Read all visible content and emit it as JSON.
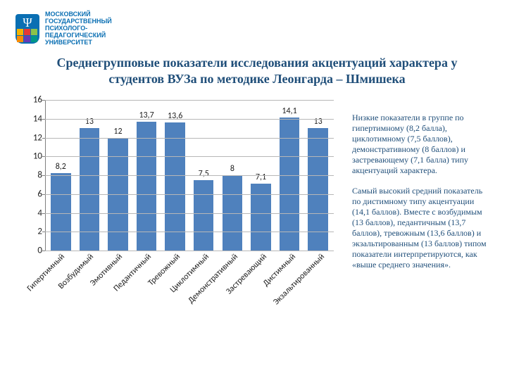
{
  "logo": {
    "text": "МОСКОВСКИЙ\nГОСУДАРСТВЕННЫЙ\nПСИХОЛОГО-\nПЕДАГОГИЧЕСКИЙ\nУНИВЕРСИТЕТ"
  },
  "title": "Среднегрупповые показатели исследования акцентуаций характера у студентов ВУЗа по методике Леонгарда – Шмишека",
  "chart": {
    "type": "bar",
    "ylim": [
      0,
      16
    ],
    "ytick_step": 2,
    "bar_color": "#4f81bd",
    "background_color": "#ffffff",
    "grid_color": "#b7b7b7",
    "axis_color": "#808080",
    "bar_width_ratio": 0.7,
    "label_fontsize": 12,
    "tick_fontsize": 13,
    "title_color": "#1f4e79",
    "categories": [
      "Гипертимный",
      "Возбудимый",
      "Эмотивный",
      "Педантичный",
      "Тревожный",
      "Циклотимный",
      "Демонстративный",
      "Застревающий",
      "Дистимный",
      "Экзальтированный"
    ],
    "values": [
      8.2,
      13,
      12,
      13.7,
      13.6,
      7.5,
      8,
      7.1,
      14.1,
      13
    ],
    "value_labels": [
      "8,2",
      "13",
      "12",
      "13,7",
      "13,6",
      "7,5",
      "8",
      "7,1",
      "14,1",
      "13"
    ]
  },
  "side": {
    "p1": "Низкие показатели в группе по гипертимному (8,2 балла), циклотимному (7,5 баллов), демонстративному (8 баллов) и застревающему (7,1 балла) типу акцентуаций характера.",
    "p2": "Самый высокий средний показатель по дистимному типу акцентуации (14,1 баллов). Вместе с возбудимым (13 баллов), педантичным (13,7 баллов), тревожным (13,6 баллов) и экзальтированным (13 баллов) типом показатели интерпретируются, как «выше среднего значения»."
  }
}
